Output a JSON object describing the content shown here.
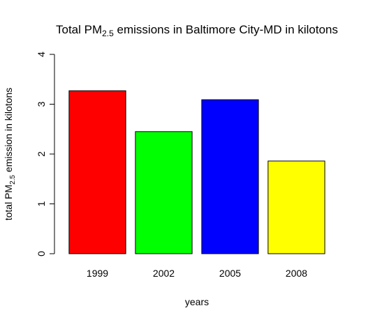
{
  "chart_data": {
    "type": "bar",
    "title": {
      "prefix": "Total PM",
      "subscript": "2.5",
      "suffix": " emissions in Baltimore City-MD in kilotons"
    },
    "xlabel": "years",
    "ylabel": {
      "prefix": "total PM",
      "subscript": "2.5",
      "suffix": " emission in kilotons"
    },
    "categories": [
      "1999",
      "2002",
      "2005",
      "2008"
    ],
    "values": [
      3.27,
      2.45,
      3.09,
      1.86
    ],
    "colors": [
      "#ff0000",
      "#00ff00",
      "#0000ff",
      "#ffff00"
    ],
    "ylim": [
      0,
      4
    ],
    "yticks": [
      "0",
      "1",
      "2",
      "3",
      "4"
    ],
    "grid": false,
    "legend": "none"
  }
}
